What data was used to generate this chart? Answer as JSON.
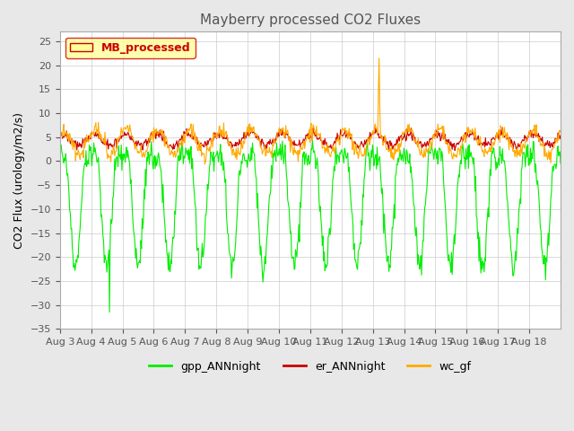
{
  "title": "Mayberry processed CO2 Fluxes",
  "ylabel": "CO2 Flux (urology/m2/s)",
  "ylim": [
    -35,
    27
  ],
  "yticks": [
    -35,
    -30,
    -25,
    -20,
    -15,
    -10,
    -5,
    0,
    5,
    10,
    15,
    20,
    25
  ],
  "xlabel_dates": [
    "Aug 3",
    "Aug 4",
    "Aug 5",
    "Aug 6",
    "Aug 7",
    "Aug 8",
    "Aug 9",
    "Aug 10",
    "Aug 11",
    "Aug 12",
    "Aug 13",
    "Aug 14",
    "Aug 15",
    "Aug 16",
    "Aug 17",
    "Aug 18"
  ],
  "legend_box_label": "MB_processed",
  "legend_box_color": "#cc0000",
  "legend_box_bg": "#ffff99",
  "colors": {
    "gpp_ANNnight": "#00ee00",
    "er_ANNnight": "#cc0000",
    "wc_gf": "#ffaa00"
  },
  "background_color": "#e8e8e8",
  "plot_bg": "#ffffff",
  "n_days": 16,
  "points_per_day": 48
}
